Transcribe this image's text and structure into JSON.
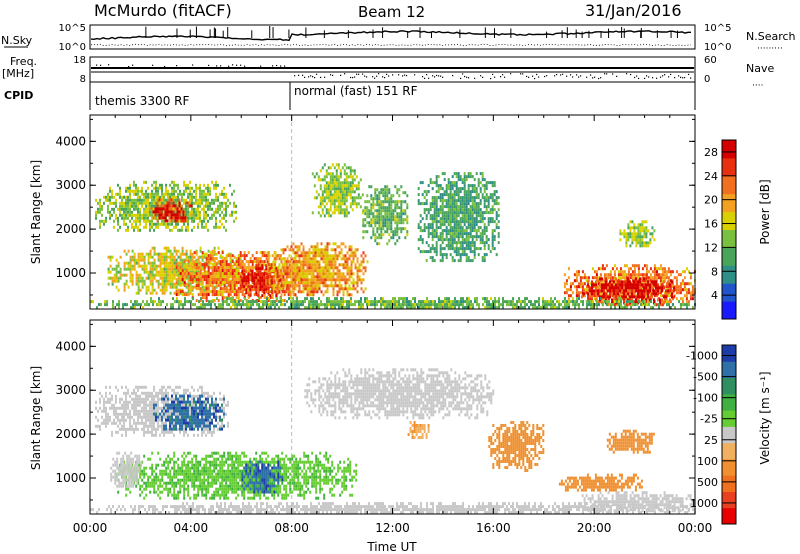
{
  "header": {
    "station": "McMurdo (fitACF)",
    "beam": "Beam 12",
    "date": "31/Jan/2016"
  },
  "top_panel": {
    "left_labels": {
      "nsky": "N.Sky",
      "freq": "Freq.",
      "freq_unit": "[MHz]",
      "cpid": "CPID"
    },
    "right_labels": {
      "nsearch": "N.Search",
      "nsearch_dots": "·········",
      "nave": "Nave",
      "nave_dots": "····"
    },
    "nsky_ticks": {
      "top": "10^5",
      "bottom": "10^0"
    },
    "nsearch_ticks": {
      "top": "10^5",
      "bottom": "10^0"
    },
    "freq_ticks": {
      "top": "18",
      "bottom": "8"
    },
    "nave_ticks": {
      "top": "60",
      "bottom": "0"
    },
    "cpid_segments": [
      {
        "label": "themis 3300 RF",
        "start_hour": 0,
        "end_hour": 8
      },
      {
        "label": "normal (fast) 151 RF",
        "start_hour": 8,
        "end_hour": 24
      }
    ]
  },
  "chart_data": [
    {
      "type": "heatmap",
      "variable": "Power",
      "ylabel": "Slant Range [km]",
      "ylim": [
        180,
        4600
      ],
      "yticks": [
        1000,
        2000,
        3000,
        4000
      ],
      "xlim": [
        0,
        24
      ],
      "colorbar": {
        "label": "Power [dB]",
        "ticks": [
          "4",
          "8",
          "12",
          "16",
          "20",
          "24",
          "28"
        ],
        "range": [
          0,
          30
        ],
        "colors": [
          "#1a1aff",
          "#2255cc",
          "#2f8f86",
          "#4aa55a",
          "#7ac040",
          "#d9d000",
          "#f4a020",
          "#f07020",
          "#e83010",
          "#d40000"
        ]
      },
      "regions": [
        {
          "t": [
            0.2,
            5.8
          ],
          "r": [
            2000,
            3100
          ],
          "level": 14
        },
        {
          "t": [
            2.4,
            4.0
          ],
          "r": [
            2200,
            2700
          ],
          "level": 26
        },
        {
          "t": [
            0.7,
            6.0
          ],
          "r": [
            550,
            1600
          ],
          "level": 16
        },
        {
          "t": [
            3.4,
            8.4
          ],
          "r": [
            350,
            1500
          ],
          "level": 22
        },
        {
          "t": [
            6.0,
            7.6
          ],
          "r": [
            500,
            1200
          ],
          "level": 28
        },
        {
          "t": [
            7.0,
            11.0
          ],
          "r": [
            500,
            1700
          ],
          "level": 20
        },
        {
          "t": [
            8.8,
            10.8
          ],
          "r": [
            2300,
            3500
          ],
          "level": 14
        },
        {
          "t": [
            10.8,
            12.6
          ],
          "r": [
            1700,
            3000
          ],
          "level": 12
        },
        {
          "t": [
            13.0,
            16.2
          ],
          "r": [
            1300,
            3300
          ],
          "level": 10
        },
        {
          "t": [
            18.8,
            24.0
          ],
          "r": [
            250,
            1200
          ],
          "level": 22
        },
        {
          "t": [
            19.4,
            23.2
          ],
          "r": [
            350,
            900
          ],
          "level": 28
        },
        {
          "t": [
            21.0,
            22.4
          ],
          "r": [
            1600,
            2200
          ],
          "level": 14
        },
        {
          "t": [
            0.0,
            24.0
          ],
          "r": [
            200,
            450
          ],
          "level": 12
        }
      ]
    },
    {
      "type": "heatmap",
      "variable": "Velocity",
      "ylabel": "Slant Range [km]",
      "xlabel": "Time UT",
      "ylim": [
        180,
        4600
      ],
      "yticks": [
        1000,
        2000,
        3000,
        4000
      ],
      "xlim": [
        0,
        24
      ],
      "xticks": [
        "00:00",
        "04:00",
        "08:00",
        "12:00",
        "16:00",
        "20:00",
        "00:00"
      ],
      "colorbar": {
        "label": "Velocity [m s⁻¹]",
        "ticks": [
          "1000",
          "500",
          "100",
          "25",
          "-25",
          "-100",
          "-500",
          "-1000"
        ],
        "range": [
          -1200,
          1200
        ],
        "colors": [
          "#e80000",
          "#e84020",
          "#f07020",
          "#f09030",
          "#f0b060",
          "#c8c8c8",
          "#66cc33",
          "#40b040",
          "#2f8f60",
          "#3070a8",
          "#1e3ca8"
        ]
      },
      "regions": [
        {
          "t": [
            0.2,
            5.5
          ],
          "r": [
            2000,
            3100
          ],
          "level": 10
        },
        {
          "t": [
            2.5,
            5.3
          ],
          "r": [
            2100,
            2900
          ],
          "level": 900
        },
        {
          "t": [
            1.0,
            10.6
          ],
          "r": [
            550,
            1600
          ],
          "level": 300
        },
        {
          "t": [
            6.0,
            7.6
          ],
          "r": [
            700,
            1400
          ],
          "level": 900
        },
        {
          "t": [
            0.8,
            2.0
          ],
          "r": [
            800,
            1600
          ],
          "level": 80
        },
        {
          "t": [
            8.5,
            16.0
          ],
          "r": [
            2400,
            3500
          ],
          "level": 5
        },
        {
          "t": [
            12.6,
            13.4
          ],
          "r": [
            1900,
            2300
          ],
          "level": -300
        },
        {
          "t": [
            15.8,
            18.0
          ],
          "r": [
            1200,
            2300
          ],
          "level": -400
        },
        {
          "t": [
            18.6,
            22.0
          ],
          "r": [
            700,
            1100
          ],
          "level": -400
        },
        {
          "t": [
            19.5,
            24.0
          ],
          "r": [
            250,
            700
          ],
          "level": 80
        },
        {
          "t": [
            20.5,
            22.4
          ],
          "r": [
            1600,
            2100
          ],
          "level": -400
        },
        {
          "t": [
            0.0,
            24.0
          ],
          "r": [
            200,
            450
          ],
          "level": 60
        }
      ]
    }
  ]
}
